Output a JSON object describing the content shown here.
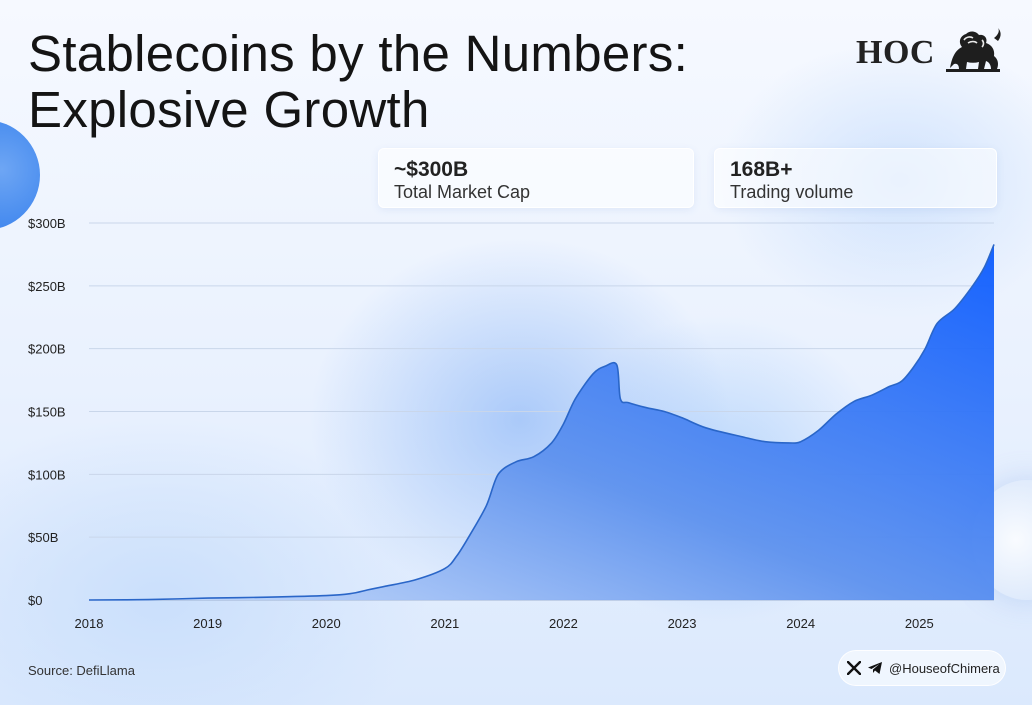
{
  "title_line1": "Stablecoins by the Numbers:",
  "title_line2": "Explosive Growth",
  "logo": {
    "text": "HOC",
    "icon": "lion-icon"
  },
  "stats": [
    {
      "value": "~$300B",
      "label": "Total Market Cap"
    },
    {
      "value": "168B+",
      "label": "Trading volume"
    }
  ],
  "source": "Source: DefiLlama",
  "social": {
    "icons": [
      "x-icon",
      "telegram-icon"
    ],
    "handle": "@HouseofChimera"
  },
  "colors": {
    "line": "#2a66c8",
    "fill_top": "#0b5bff",
    "fill_bottom": "#cfe0fb",
    "grid": "#c9d6ea"
  },
  "chart_data": {
    "type": "area",
    "title": "",
    "xlabel": "",
    "ylabel": "",
    "xlim": [
      2018,
      2025.63
    ],
    "ylim": [
      0,
      300
    ],
    "y_unit": "B USD",
    "xticks": [
      2018,
      2019,
      2020,
      2021,
      2022,
      2023,
      2024,
      2025
    ],
    "xtick_labels": [
      "2018",
      "2019",
      "2020",
      "2021",
      "2022",
      "2023",
      "2024",
      "2025"
    ],
    "yticks": [
      0,
      50,
      100,
      150,
      200,
      250,
      300
    ],
    "ytick_labels": [
      "$0",
      "$50B",
      "$100B",
      "$150B",
      "$200B",
      "$250B",
      "$300B"
    ],
    "grid": true,
    "legend": "none",
    "series": [
      {
        "values": [
          [
            2018.0,
            0
          ],
          [
            2018.5,
            0.3
          ],
          [
            2019.0,
            1.5
          ],
          [
            2019.5,
            2.2
          ],
          [
            2020.0,
            3.5
          ],
          [
            2020.2,
            5
          ],
          [
            2020.35,
            8
          ],
          [
            2020.5,
            11
          ],
          [
            2020.75,
            16
          ],
          [
            2021.0,
            25
          ],
          [
            2021.1,
            35
          ],
          [
            2021.2,
            50
          ],
          [
            2021.35,
            75
          ],
          [
            2021.45,
            100
          ],
          [
            2021.6,
            110
          ],
          [
            2021.75,
            114
          ],
          [
            2021.9,
            125
          ],
          [
            2022.0,
            140
          ],
          [
            2022.1,
            160
          ],
          [
            2022.25,
            180
          ],
          [
            2022.35,
            186
          ],
          [
            2022.45,
            187
          ],
          [
            2022.48,
            160
          ],
          [
            2022.55,
            157
          ],
          [
            2022.7,
            153
          ],
          [
            2022.85,
            150
          ],
          [
            2023.0,
            145
          ],
          [
            2023.2,
            137
          ],
          [
            2023.5,
            130
          ],
          [
            2023.7,
            126
          ],
          [
            2023.9,
            125
          ],
          [
            2024.0,
            126
          ],
          [
            2024.15,
            135
          ],
          [
            2024.3,
            148
          ],
          [
            2024.45,
            158
          ],
          [
            2024.6,
            163
          ],
          [
            2024.75,
            170
          ],
          [
            2024.85,
            174
          ],
          [
            2024.95,
            185
          ],
          [
            2025.05,
            200
          ],
          [
            2025.15,
            220
          ],
          [
            2025.3,
            232
          ],
          [
            2025.45,
            250
          ],
          [
            2025.55,
            265
          ],
          [
            2025.63,
            283
          ]
        ]
      }
    ]
  }
}
